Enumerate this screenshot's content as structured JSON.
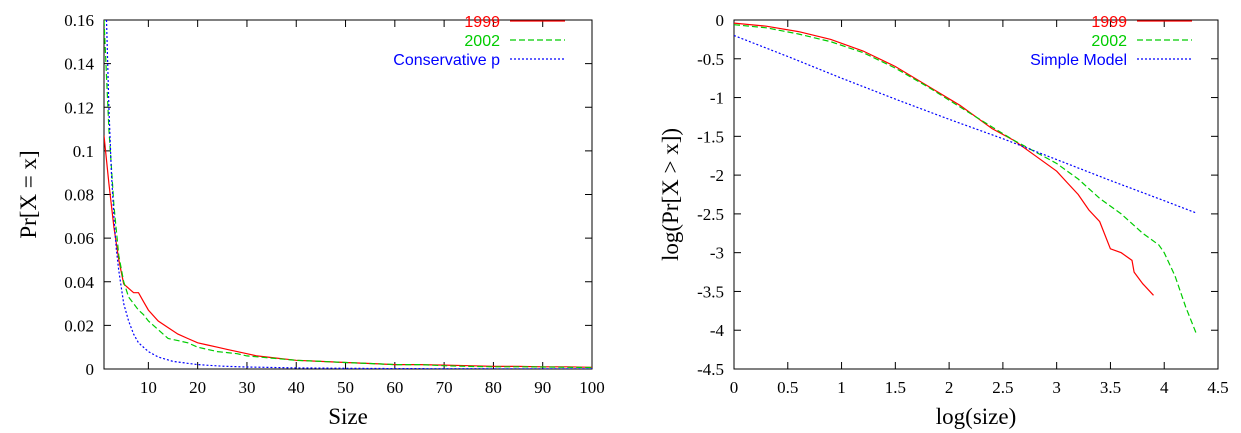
{
  "colors": {
    "red": "#ff0000",
    "green": "#00cc00",
    "blue": "#0000ff",
    "axis": "#000000"
  },
  "chart_data": [
    {
      "type": "line",
      "title": "",
      "xlabel": "Size",
      "ylabel": "Pr[X = x]",
      "xlim": [
        1,
        100
      ],
      "ylim": [
        0,
        0.16
      ],
      "xticks": [
        10,
        20,
        30,
        40,
        50,
        60,
        70,
        80,
        90,
        100
      ],
      "xtick_labels": [
        "10",
        "20",
        "30",
        "40",
        "50",
        "60",
        "70",
        "80",
        "90",
        "100"
      ],
      "yticks": [
        0,
        0.02,
        0.04,
        0.06,
        0.08,
        0.1,
        0.12,
        0.14,
        0.16
      ],
      "ytick_labels": [
        "0",
        "0.02",
        "0.04",
        "0.06",
        "0.08",
        "0.1",
        "0.12",
        "0.14",
        "0.16"
      ],
      "grid": false,
      "legend": "top-right",
      "series": [
        {
          "name": "1999",
          "color": "#ff0000",
          "dash": "solid",
          "x": [
            1,
            2,
            3,
            4,
            5,
            6,
            7,
            8,
            9,
            10,
            12,
            14,
            16,
            18,
            20,
            22,
            24,
            26,
            28,
            30,
            32,
            34,
            36,
            38,
            40,
            45,
            50,
            55,
            60,
            65,
            70,
            75,
            80,
            85,
            90,
            95,
            100
          ],
          "y": [
            0.107,
            0.085,
            0.065,
            0.05,
            0.039,
            0.037,
            0.035,
            0.035,
            0.031,
            0.027,
            0.022,
            0.019,
            0.016,
            0.014,
            0.012,
            0.011,
            0.01,
            0.009,
            0.008,
            0.007,
            0.006,
            0.0055,
            0.005,
            0.0045,
            0.004,
            0.0035,
            0.003,
            0.0025,
            0.002,
            0.002,
            0.0018,
            0.0015,
            0.0012,
            0.0012,
            0.001,
            0.001,
            0.0008
          ]
        },
        {
          "name": "2002",
          "color": "#00cc00",
          "dash": "6,3",
          "x": [
            1,
            2,
            3,
            4,
            5,
            6,
            7,
            8,
            9,
            10,
            12,
            14,
            16,
            18,
            20,
            22,
            24,
            26,
            28,
            30,
            35,
            40,
            45,
            50,
            55,
            60,
            65,
            70,
            75,
            80,
            85,
            90,
            95,
            100
          ],
          "y": [
            0.16,
            0.11,
            0.075,
            0.052,
            0.04,
            0.033,
            0.03,
            0.027,
            0.025,
            0.022,
            0.018,
            0.014,
            0.013,
            0.012,
            0.01,
            0.009,
            0.008,
            0.0075,
            0.007,
            0.006,
            0.005,
            0.004,
            0.0035,
            0.003,
            0.0025,
            0.002,
            0.002,
            0.0015,
            0.0012,
            0.001,
            0.001,
            0.0009,
            0.0008,
            0.0007
          ]
        },
        {
          "name": "Conservative p",
          "color": "#0000ff",
          "dash": "2,2",
          "x": [
            1.5,
            2,
            2.5,
            3,
            3.5,
            4,
            5,
            6,
            7,
            8,
            10,
            12,
            15,
            20,
            25,
            30,
            40,
            50,
            60,
            70,
            80,
            90,
            100
          ],
          "y": [
            0.16,
            0.12,
            0.09,
            0.07,
            0.055,
            0.045,
            0.03,
            0.022,
            0.016,
            0.012,
            0.008,
            0.0055,
            0.0035,
            0.002,
            0.0013,
            0.0009,
            0.0005,
            0.0003,
            0.0002,
            0.00015,
            0.0001,
            8e-05,
            6e-05
          ]
        }
      ]
    },
    {
      "type": "line",
      "title": "",
      "xlabel": "log(size)",
      "ylabel": "log(Pr[X > x])",
      "xlim": [
        0,
        4.5
      ],
      "ylim": [
        -4.5,
        0
      ],
      "xticks": [
        0,
        0.5,
        1,
        1.5,
        2,
        2.5,
        3,
        3.5,
        4,
        4.5
      ],
      "xtick_labels": [
        "0",
        "0.5",
        "1",
        "1.5",
        "2",
        "2.5",
        "3",
        "3.5",
        "4",
        "4.5"
      ],
      "yticks": [
        0,
        -0.5,
        -1,
        -1.5,
        -2,
        -2.5,
        -3,
        -3.5,
        -4,
        -4.5
      ],
      "ytick_labels": [
        "0",
        "-0.5",
        "-1",
        "-1.5",
        "-2",
        "-2.5",
        "-3",
        "-3.5",
        "-4",
        "-4.5"
      ],
      "grid": false,
      "legend": "top-right",
      "series": [
        {
          "name": "1999",
          "color": "#ff0000",
          "dash": "solid",
          "x": [
            0,
            0.3,
            0.6,
            0.9,
            1.2,
            1.5,
            1.8,
            2.1,
            2.4,
            2.6,
            2.8,
            3.0,
            3.1,
            3.2,
            3.3,
            3.4,
            3.5,
            3.6,
            3.7,
            3.72,
            3.8,
            3.9
          ],
          "y": [
            -0.04,
            -0.08,
            -0.15,
            -0.25,
            -0.4,
            -0.6,
            -0.85,
            -1.1,
            -1.4,
            -1.55,
            -1.75,
            -1.95,
            -2.1,
            -2.25,
            -2.45,
            -2.6,
            -2.95,
            -3.0,
            -3.1,
            -3.25,
            -3.4,
            -3.55
          ]
        },
        {
          "name": "2002",
          "color": "#00cc00",
          "dash": "6,3",
          "x": [
            0,
            0.3,
            0.6,
            0.9,
            1.2,
            1.5,
            1.8,
            2.1,
            2.4,
            2.6,
            2.8,
            3.0,
            3.2,
            3.4,
            3.6,
            3.8,
            3.95,
            4.0,
            4.1,
            4.2,
            4.3
          ],
          "y": [
            -0.06,
            -0.1,
            -0.18,
            -0.28,
            -0.42,
            -0.62,
            -0.86,
            -1.12,
            -1.38,
            -1.55,
            -1.7,
            -1.85,
            -2.05,
            -2.3,
            -2.5,
            -2.75,
            -2.9,
            -3.0,
            -3.3,
            -3.7,
            -4.05
          ]
        },
        {
          "name": "Simple Model",
          "color": "#0000ff",
          "dash": "2,2",
          "x": [
            0,
            0.5,
            1,
            1.5,
            2,
            2.5,
            3,
            3.5,
            4,
            4.3
          ],
          "y": [
            -0.2,
            -0.47,
            -0.75,
            -1.02,
            -1.28,
            -1.53,
            -1.8,
            -2.07,
            -2.33,
            -2.49
          ]
        }
      ]
    }
  ]
}
